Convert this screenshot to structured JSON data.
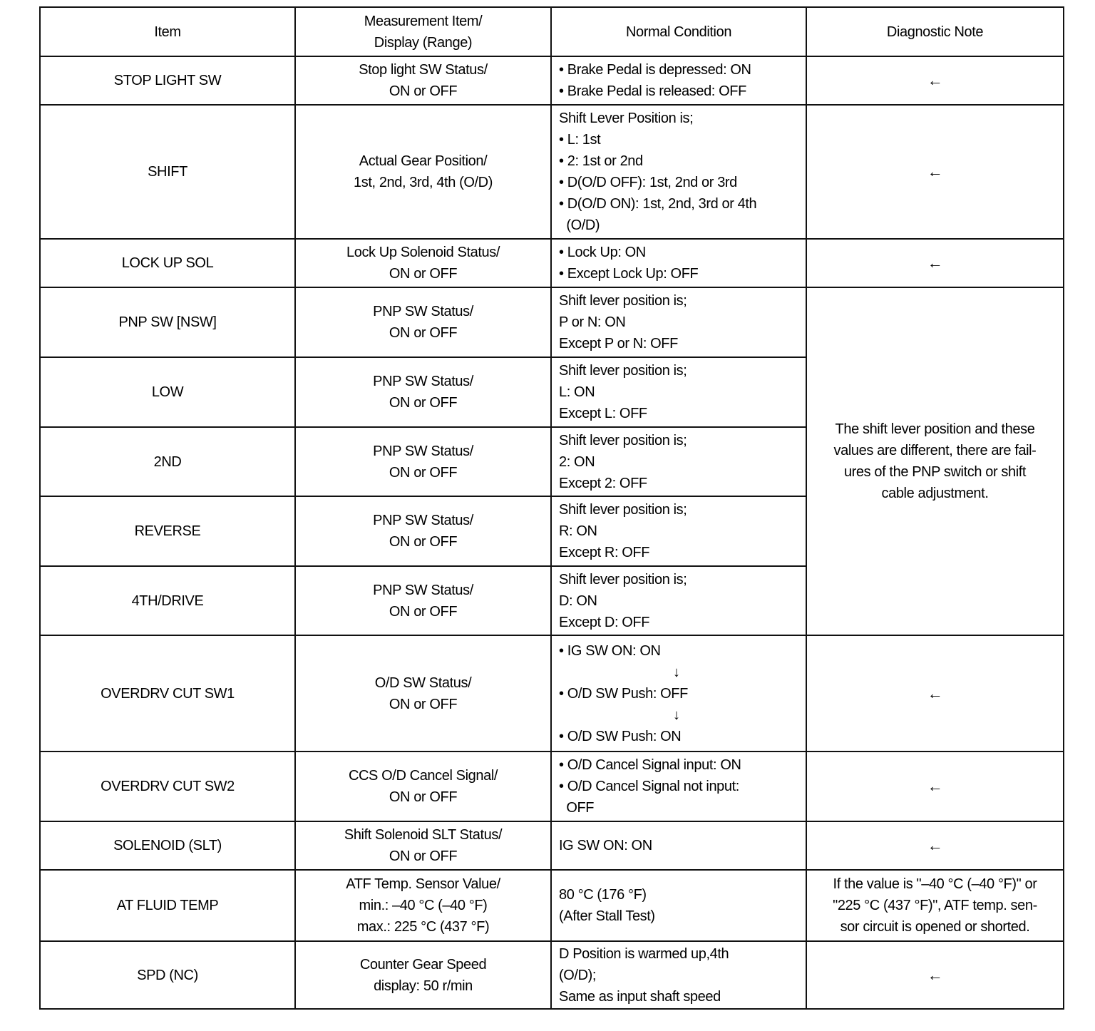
{
  "header": [
    "Item",
    "Measurement Item/\nDisplay (Range)",
    "Normal Condition",
    "Diagnostic Note"
  ],
  "rows": [
    {
      "item": "STOP LIGHT SW",
      "measure": [
        "Stop light SW Status/",
        "ON or OFF"
      ],
      "condition": [
        "• Brake Pedal is depressed: ON",
        "• Brake Pedal is released: OFF"
      ],
      "note": [
        "←"
      ]
    },
    {
      "item": "SHIFT",
      "measure": [
        "Actual Gear Position/",
        "1st, 2nd, 3rd, 4th (O/D)"
      ],
      "condition": [
        "Shift Lever Position is;",
        "• L: 1st",
        "• 2: 1st or 2nd",
        "• D(O/D OFF): 1st, 2nd or 3rd",
        "• D(O/D ON): 1st, 2nd, 3rd or 4th",
        "  (O/D)"
      ],
      "note": [
        "←"
      ]
    },
    {
      "item": "LOCK UP SOL",
      "measure": [
        "Lock Up Solenoid Status/",
        "ON or OFF"
      ],
      "condition": [
        "• Lock Up: ON",
        "• Except Lock Up: OFF"
      ],
      "note": [
        "←"
      ]
    },
    {
      "item": "PNP SW [NSW]",
      "measure": [
        "PNP SW Status/",
        "ON or OFF"
      ],
      "condition": [
        "Shift lever position is;",
        "P or N: ON",
        "Except P or N: OFF"
      ],
      "note": [
        "The shift lever position and these",
        "values are different, there are fail-",
        "ures of the PNP switch or shift",
        "cable adjustment."
      ],
      "note_rowspan": 5
    },
    {
      "item": "LOW",
      "measure": [
        "PNP SW Status/",
        "ON or OFF"
      ],
      "condition": [
        "Shift lever position is;",
        "L: ON",
        "Except L: OFF"
      ]
    },
    {
      "item": "2ND",
      "measure": [
        "PNP SW Status/",
        "ON or OFF"
      ],
      "condition": [
        "Shift lever position is;",
        "2: ON",
        "Except 2: OFF"
      ]
    },
    {
      "item": "REVERSE",
      "measure": [
        "PNP SW Status/",
        "ON or OFF"
      ],
      "condition": [
        "Shift lever position is;",
        "R: ON",
        "Except R: OFF"
      ]
    },
    {
      "item": "4TH/DRIVE",
      "measure": [
        "PNP SW Status/",
        "ON or OFF"
      ],
      "condition": [
        "Shift lever position is;",
        "D: ON",
        "Except D: OFF"
      ]
    },
    {
      "item": "OVERDRV CUT SW1",
      "measure": [
        "O/D SW Status/",
        "ON or OFF"
      ],
      "condition": [
        "• IG SW ON: ON",
        "↓",
        "• O/D SW Push: OFF",
        "↓",
        "• O/D SW Push: ON"
      ],
      "note": [
        "←"
      ]
    },
    {
      "item": "OVERDRV CUT SW2",
      "measure": [
        "CCS O/D Cancel Signal/",
        "ON or OFF"
      ],
      "condition": [
        "• O/D Cancel Signal input: ON",
        "• O/D Cancel Signal not input:",
        "  OFF"
      ],
      "note": [
        "←"
      ]
    },
    {
      "item": "SOLENOID (SLT)",
      "measure": [
        "Shift Solenoid SLT Status/",
        "ON or OFF"
      ],
      "condition": [
        "IG SW ON: ON"
      ],
      "note": [
        "←"
      ]
    },
    {
      "item": "AT FLUID TEMP",
      "measure": [
        "ATF Temp. Sensor Value/",
        "min.: –40 °C (–40 °F)",
        "max.: 225 °C (437 °F)"
      ],
      "condition": [
        "80 °C (176 °F)",
        "(After Stall Test)"
      ],
      "note": [
        "If the value is \"–40 °C (–40 °F)\" or",
        "\"225 °C (437 °F)\", ATF temp. sen-",
        "sor circuit is opened or shorted."
      ]
    },
    {
      "item": "SPD (NC)",
      "measure": [
        "Counter Gear Speed",
        "display: 50 r/min"
      ],
      "condition": [
        "D Position is warmed up,4th",
        "(O/D);",
        "Same as input shaft speed"
      ],
      "note": [
        "←"
      ]
    }
  ]
}
